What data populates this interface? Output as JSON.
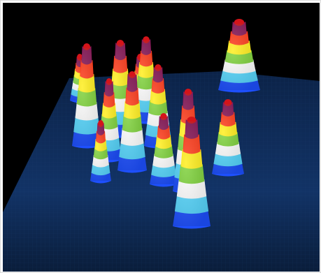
{
  "image": {
    "background_color": "#000000",
    "floor_color": "#0f2a55",
    "frame_color": "#ffffff",
    "band_colors": [
      "#1e50ff",
      "#58d8ff",
      "#ffffff",
      "#7ed23a",
      "#ffee1a",
      "#ff3b1a",
      "#8a1a5a"
    ],
    "peak_count": 14
  }
}
